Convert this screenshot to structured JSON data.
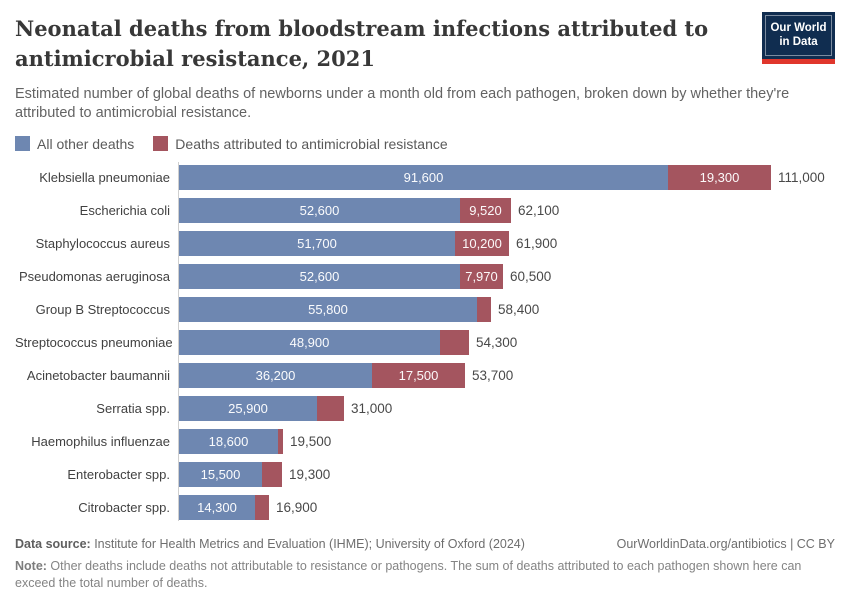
{
  "header": {
    "title": "Neonatal deaths from bloodstream infections attributed to antimicrobial resistance, 2021",
    "subtitle": "Estimated number of global deaths of newborns under a month old from each pathogen, broken down by whether they're attributed to antimicrobial resistance.",
    "logo": {
      "line1": "Our World",
      "line2": "in Data"
    }
  },
  "legend": [
    {
      "label": "All other deaths",
      "color": "#6e87b1"
    },
    {
      "label": "Deaths attributed to antimicrobial resistance",
      "color": "#a4555f"
    }
  ],
  "chart_data": {
    "type": "bar",
    "orientation": "horizontal",
    "stacked": true,
    "xmax": 111000,
    "grid": false,
    "legend_position": "top",
    "series_names": [
      "All other deaths",
      "Deaths attributed to antimicrobial resistance"
    ],
    "colors": {
      "other": "#6e87b1",
      "amr": "#a4555f"
    },
    "rows": [
      {
        "pathogen": "Klebsiella pneumoniae",
        "other": 91600,
        "amr": 19300,
        "other_label": "91,600",
        "amr_label": "19,300",
        "total_label": "111,000"
      },
      {
        "pathogen": "Escherichia coli",
        "other": 52600,
        "amr": 9520,
        "other_label": "52,600",
        "amr_label": "9,520",
        "total_label": "62,100"
      },
      {
        "pathogen": "Staphylococcus aureus",
        "other": 51700,
        "amr": 10200,
        "other_label": "51,700",
        "amr_label": "10,200",
        "total_label": "61,900"
      },
      {
        "pathogen": "Pseudomonas aeruginosa",
        "other": 52600,
        "amr": 7970,
        "other_label": "52,600",
        "amr_label": "7,970",
        "total_label": "60,500"
      },
      {
        "pathogen": "Group B Streptococcus",
        "other": 55800,
        "amr": 2600,
        "other_label": "55,800",
        "amr_label": null,
        "total_label": "58,400"
      },
      {
        "pathogen": "Streptococcus pneumoniae",
        "other": 48900,
        "amr": 5400,
        "other_label": "48,900",
        "amr_label": null,
        "total_label": "54,300"
      },
      {
        "pathogen": "Acinetobacter baumannii",
        "other": 36200,
        "amr": 17500,
        "other_label": "36,200",
        "amr_label": "17,500",
        "total_label": "53,700"
      },
      {
        "pathogen": "Serratia spp.",
        "other": 25900,
        "amr": 5100,
        "other_label": "25,900",
        "amr_label": null,
        "total_label": "31,000"
      },
      {
        "pathogen": "Haemophilus influenzae",
        "other": 18600,
        "amr": 900,
        "other_label": "18,600",
        "amr_label": null,
        "total_label": "19,500"
      },
      {
        "pathogen": "Enterobacter spp.",
        "other": 15500,
        "amr": 3800,
        "other_label": "15,500",
        "amr_label": null,
        "total_label": "19,300"
      },
      {
        "pathogen": "Citrobacter spp.",
        "other": 14300,
        "amr": 2600,
        "other_label": "14,300",
        "amr_label": null,
        "total_label": "16,900"
      }
    ]
  },
  "footer": {
    "data_source_label": "Data source:",
    "data_source": " Institute for Health Metrics and Evaluation (IHME); University of Oxford (2024)",
    "link": "OurWorldinData.org/antibiotics | CC BY",
    "note_label": "Note:",
    "note": " Other deaths include deaths not attributable to resistance or pathogens. The sum of deaths attributed to each pathogen shown here can exceed the total number of deaths."
  }
}
